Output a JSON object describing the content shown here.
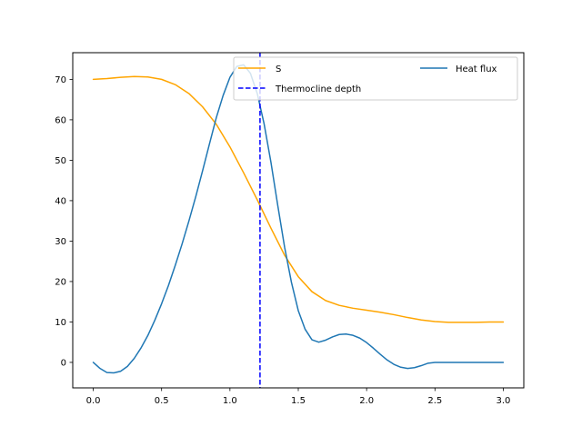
{
  "chart_data": {
    "type": "line",
    "title": "",
    "xlabel": "",
    "ylabel": "",
    "xlim": [
      -0.15,
      3.15
    ],
    "ylim": [
      -6.3,
      76.6
    ],
    "grid": false,
    "legend_placement": "top-right",
    "xticks": [
      0.0,
      0.5,
      1.0,
      1.5,
      2.0,
      2.5,
      3.0
    ],
    "xtick_labels": [
      "0.0",
      "0.5",
      "1.0",
      "1.5",
      "2.0",
      "2.5",
      "3.0"
    ],
    "yticks": [
      0,
      10,
      20,
      30,
      40,
      50,
      60,
      70
    ],
    "ytick_labels": [
      "0",
      "10",
      "20",
      "30",
      "40",
      "50",
      "60",
      "70"
    ],
    "series": [
      {
        "name": "S",
        "color": "#ffa500",
        "style": "solid",
        "x": [
          0.0,
          0.1,
          0.2,
          0.3,
          0.4,
          0.5,
          0.6,
          0.7,
          0.8,
          0.9,
          1.0,
          1.1,
          1.2,
          1.3,
          1.4,
          1.5,
          1.6,
          1.7,
          1.8,
          1.9,
          2.0,
          2.1,
          2.2,
          2.3,
          2.4,
          2.5,
          2.6,
          2.7,
          2.8,
          2.9,
          3.0
        ],
        "y": [
          70.0,
          70.2,
          70.5,
          70.7,
          70.6,
          70.0,
          68.7,
          66.5,
          63.2,
          58.9,
          53.3,
          46.9,
          40.2,
          33.2,
          26.5,
          21.2,
          17.5,
          15.3,
          14.1,
          13.4,
          12.9,
          12.4,
          11.8,
          11.1,
          10.5,
          10.1,
          9.9,
          9.9,
          9.9,
          10.0,
          10.0
        ]
      },
      {
        "name": "Heat flux",
        "color": "#1f77b4",
        "style": "solid",
        "x": [
          0.0,
          0.05,
          0.1,
          0.15,
          0.2,
          0.25,
          0.3,
          0.35,
          0.4,
          0.45,
          0.5,
          0.55,
          0.6,
          0.65,
          0.7,
          0.75,
          0.8,
          0.85,
          0.9,
          0.95,
          1.0,
          1.05,
          1.1,
          1.15,
          1.2,
          1.25,
          1.3,
          1.35,
          1.4,
          1.45,
          1.5,
          1.55,
          1.6,
          1.65,
          1.7,
          1.75,
          1.8,
          1.85,
          1.9,
          1.95,
          2.0,
          2.05,
          2.1,
          2.15,
          2.2,
          2.25,
          2.3,
          2.35,
          2.4,
          2.45,
          2.5,
          2.55,
          2.6,
          2.65,
          2.7,
          2.75,
          2.8,
          2.85,
          2.9,
          2.95,
          3.0
        ],
        "y": [
          0.0,
          -1.5,
          -2.5,
          -2.6,
          -2.2,
          -1.0,
          1.0,
          3.6,
          6.7,
          10.4,
          14.5,
          19.0,
          24.0,
          29.3,
          35.0,
          41.0,
          47.4,
          54.0,
          60.5,
          66.0,
          70.5,
          73.2,
          73.6,
          71.5,
          66.5,
          59.0,
          49.5,
          38.8,
          28.5,
          19.8,
          12.8,
          8.2,
          5.6,
          5.0,
          5.5,
          6.3,
          6.9,
          7.0,
          6.7,
          6.0,
          4.9,
          3.5,
          2.0,
          0.6,
          -0.5,
          -1.2,
          -1.5,
          -1.3,
          -0.8,
          -0.2,
          0.0,
          0.0,
          0.0,
          0.0,
          0.0,
          0.0,
          0.0,
          0.0,
          0.0,
          0.0,
          0.0
        ]
      },
      {
        "name": "Thermocline depth",
        "color": "#0000ff",
        "style": "dashed",
        "type": "vline",
        "x": 1.22
      }
    ],
    "legend": {
      "entries": [
        "S",
        "Thermocline depth",
        "Heat flux"
      ]
    }
  }
}
